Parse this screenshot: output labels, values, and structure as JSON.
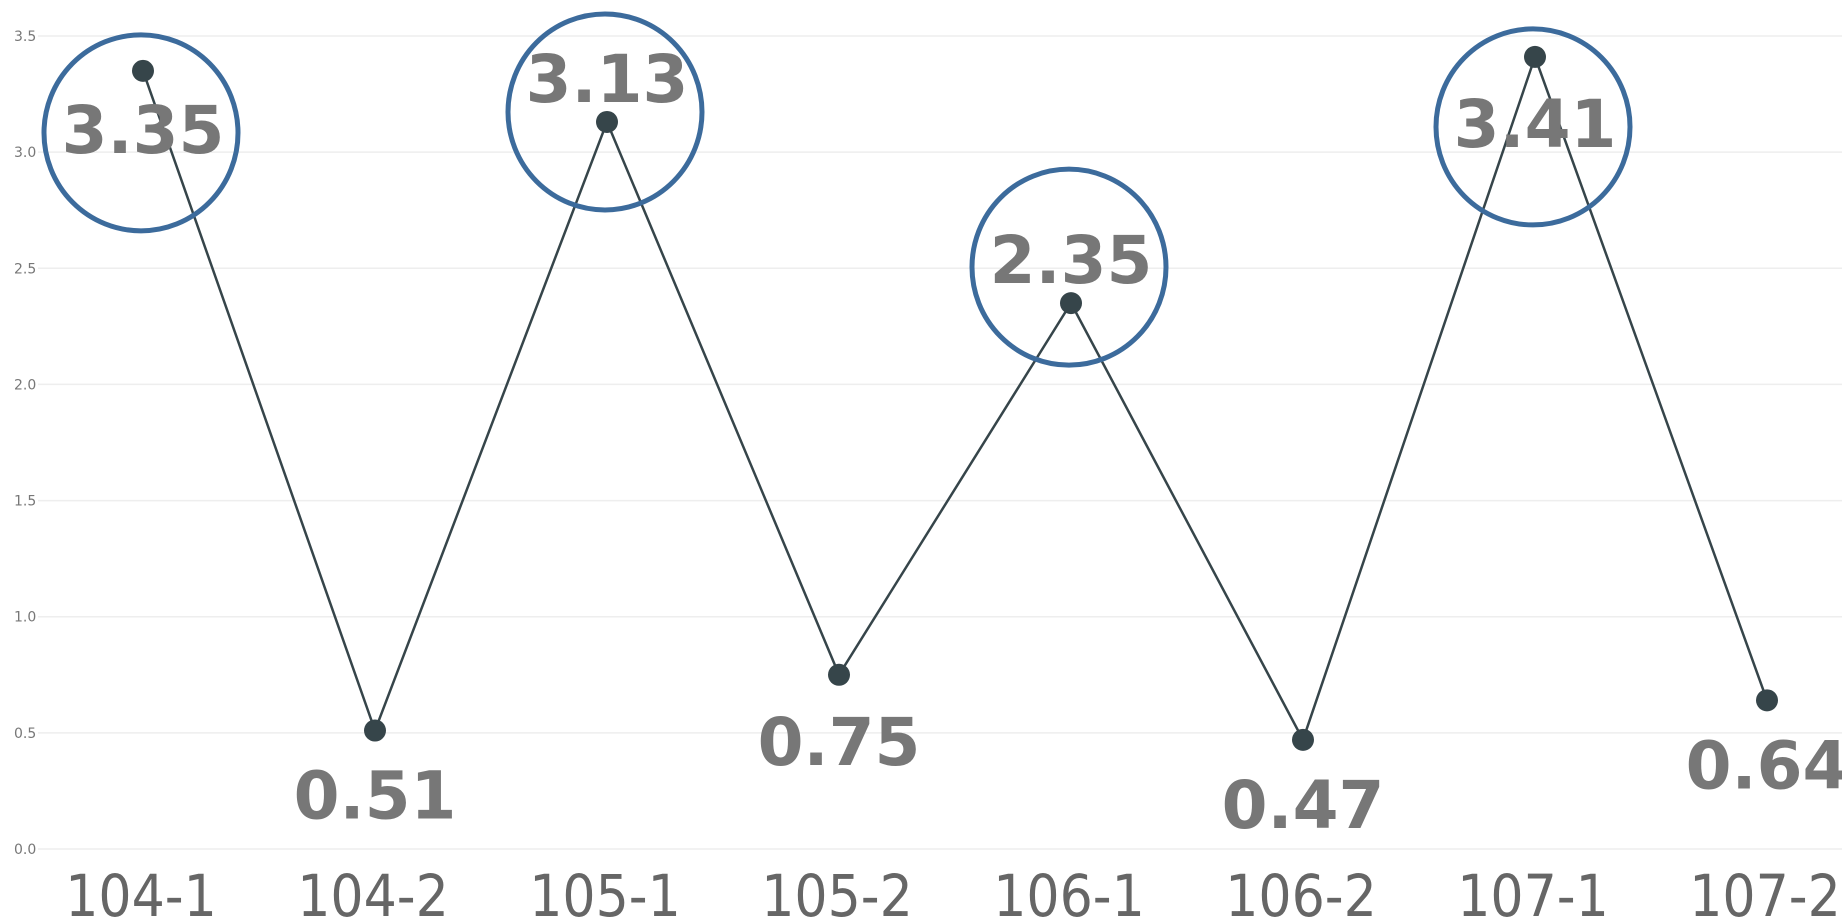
{
  "chart_data": {
    "type": "line",
    "categories": [
      "104-1",
      "104-2",
      "105-1",
      "105-2",
      "106-1",
      "106-2",
      "107-1",
      "107-2"
    ],
    "series": [
      {
        "values": [
          3.35,
          0.51,
          3.13,
          0.75,
          2.35,
          0.47,
          3.41,
          0.64
        ]
      }
    ],
    "data_labels": [
      "3.35",
      "0.51",
      "3.13",
      "0.75",
      "2.35",
      "0.47",
      "3.41",
      "0.64"
    ],
    "ylim": [
      0,
      3.5
    ],
    "yticks": [
      "0.0",
      "0.5",
      "1.0",
      "1.5",
      "2.0",
      "2.5",
      "3.0",
      "3.5"
    ],
    "grid": true,
    "highlighted_points": [
      "104-1",
      "105-1",
      "106-1",
      "107-1"
    ],
    "colors": {
      "line": "#36454a",
      "highlight_circle": "#3c6b9c",
      "label": "#777777"
    }
  }
}
